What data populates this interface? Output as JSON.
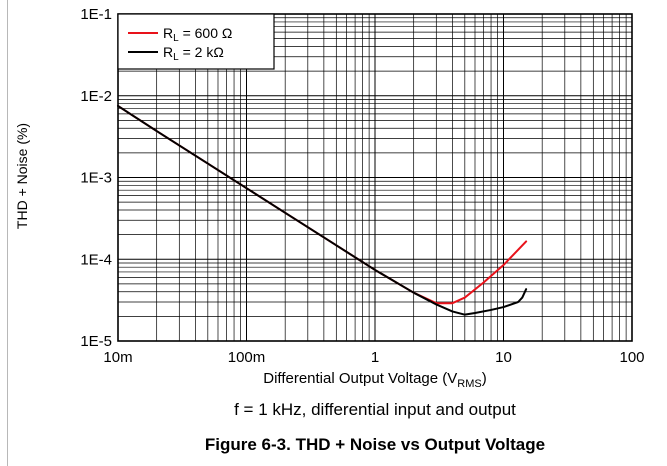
{
  "chart_data": {
    "type": "line",
    "x_scale": "log",
    "y_scale": "log",
    "xlabel": "Differential Output Voltage (V",
    "xlabel_sub": "RMS",
    "xlabel_end": ")",
    "ylabel": "THD + Noise (%)",
    "xlim": [
      0.01,
      100
    ],
    "ylim": [
      1e-05,
      0.1
    ],
    "x_ticks": [
      "10m",
      "100m",
      "1",
      "10",
      "100"
    ],
    "y_ticks": [
      "1E-1",
      "1E-2",
      "1E-3",
      "1E-4",
      "1E-5"
    ],
    "grid": true,
    "legend_position": "top-left",
    "series": [
      {
        "name": "R",
        "name_sub": "L",
        "name_rest": " = 600 Ω",
        "color": "#e8121a",
        "x": [
          0.01,
          0.02,
          0.05,
          0.1,
          0.2,
          0.5,
          1,
          2,
          3,
          4,
          5,
          7,
          10,
          15
        ],
        "y": [
          0.0075,
          0.0037,
          0.00148,
          0.00074,
          0.00037,
          0.000148,
          7.4e-05,
          3.9e-05,
          2.9e-05,
          2.9e-05,
          3.4e-05,
          5.2e-05,
          8.5e-05,
          0.000165
        ]
      },
      {
        "name": "R",
        "name_sub": "L",
        "name_rest": " = 2 kΩ",
        "color": "#000000",
        "x": [
          0.01,
          0.02,
          0.05,
          0.1,
          0.2,
          0.5,
          1,
          2,
          3,
          4,
          5,
          6,
          8,
          10,
          13,
          14,
          15
        ],
        "y": [
          0.0075,
          0.0037,
          0.00148,
          0.00074,
          0.00037,
          0.000148,
          7.4e-05,
          3.9e-05,
          2.8e-05,
          2.3e-05,
          2.1e-05,
          2.2e-05,
          2.4e-05,
          2.6e-05,
          3e-05,
          3.4e-05,
          4.3e-05
        ]
      }
    ]
  },
  "caption": "f = 1 kHz, differential input and output",
  "figure_title": "Figure 6-3. THD + Noise vs Output Voltage"
}
